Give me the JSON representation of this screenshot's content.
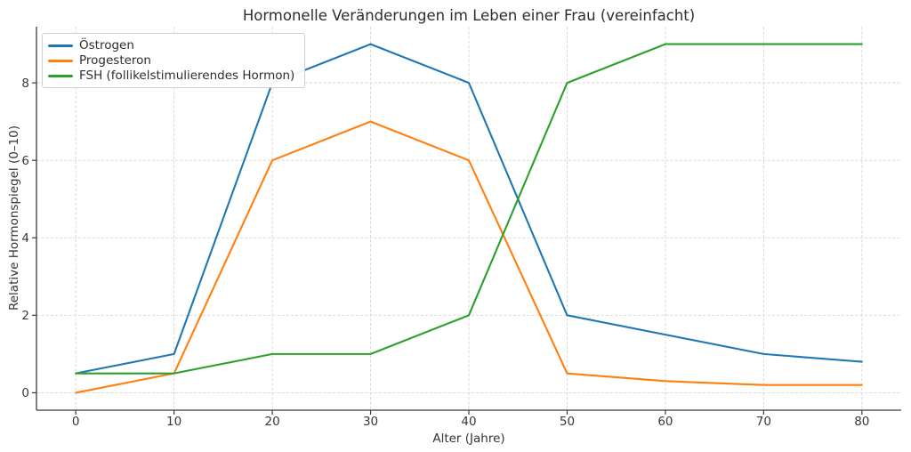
{
  "chart_data": {
    "type": "line",
    "title": "Hormonelle Veränderungen im Leben einer Frau (vereinfacht)",
    "xlabel": "Alter (Jahre)",
    "ylabel": "Relative Hormonspiegel (0–10)",
    "x": [
      0,
      10,
      20,
      30,
      40,
      50,
      60,
      70,
      80
    ],
    "series": [
      {
        "name": "Östrogen",
        "color": "#1f77b4",
        "values": [
          0.5,
          1,
          8,
          9,
          8,
          2,
          1.5,
          1,
          0.8
        ]
      },
      {
        "name": "Progesteron",
        "color": "#ff7f0e",
        "values": [
          0,
          0.5,
          6,
          7,
          6,
          0.5,
          0.3,
          0.2,
          0.2
        ]
      },
      {
        "name": "FSH (follikelstimulierendes Hormon)",
        "color": "#2ca02c",
        "values": [
          0.5,
          0.5,
          1,
          1,
          2,
          8,
          9,
          9,
          9
        ]
      }
    ],
    "xticks": [
      0,
      10,
      20,
      30,
      40,
      50,
      60,
      70,
      80
    ],
    "yticks": [
      0,
      2,
      4,
      6,
      8
    ],
    "xlim": [
      -4,
      84
    ],
    "ylim": [
      -0.45,
      9.45
    ],
    "grid": true,
    "grid_style": "dashed",
    "legend_position": "upper-left"
  },
  "colors": {
    "background": "#ffffff",
    "grid": "#d5d5d5",
    "spine": "#3b3b3b",
    "tick": "#3b3b3b",
    "text": "#333333",
    "legend_border": "#cfcfcf"
  }
}
